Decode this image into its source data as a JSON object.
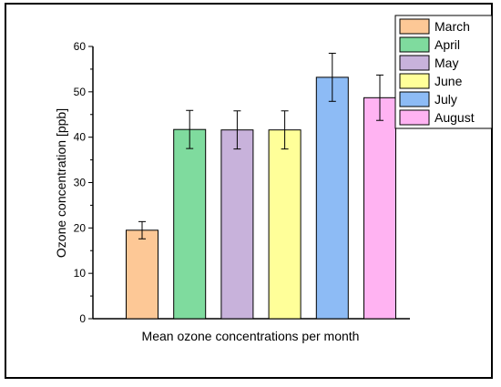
{
  "chart_data": {
    "type": "bar",
    "xlabel": "Mean ozone concentrations per month",
    "ylabel": "Ozone concentration [ppb]",
    "ylim": [
      0,
      60
    ],
    "yticks": [
      "0",
      "10",
      "20",
      "30",
      "40",
      "50",
      "60"
    ],
    "grid": false,
    "legend_position": "top-right",
    "categories": [
      "March",
      "April",
      "May",
      "June",
      "July",
      "August"
    ],
    "values": [
      19.5,
      41.7,
      41.6,
      41.6,
      53.2,
      48.7
    ],
    "errors": [
      1.9,
      4.2,
      4.2,
      4.2,
      5.3,
      5.0
    ],
    "colors": [
      "#FDC896",
      "#7FDB9E",
      "#C8B2DB",
      "#FFFF99",
      "#8DBBF5",
      "#FFB3F2"
    ]
  }
}
